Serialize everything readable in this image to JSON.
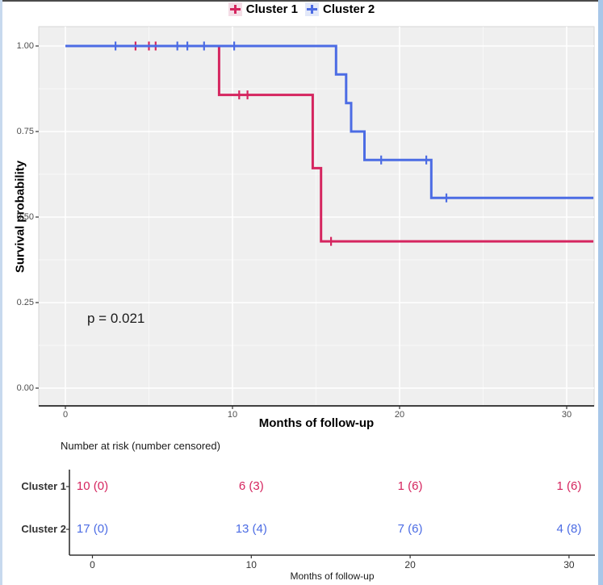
{
  "window": {
    "frame_color": "#a8c7e9",
    "top_line_color": "#4a4a4a"
  },
  "legend": {
    "items": [
      {
        "label": "Cluster 1",
        "color": "#D5255F",
        "key_bg": "#f4dde6"
      },
      {
        "label": "Cluster 2",
        "color": "#4C6CE4",
        "key_bg": "#e2e8f9"
      }
    ]
  },
  "chart_data": {
    "type": "line",
    "subtype": "kaplan_meier_step_curves",
    "title": "",
    "xlabel": "Months of follow-up",
    "ylabel": "Survival probability",
    "xlim": [
      0,
      31.6
    ],
    "ylim": [
      0,
      1
    ],
    "grid": true,
    "legend_position": "top",
    "panel_bg": "#efefef",
    "pvalue_annotation": "p = 0.021",
    "x_ticks": [
      {
        "label": "0",
        "value": 0
      },
      {
        "label": "10",
        "value": 10
      },
      {
        "label": "20",
        "value": 20
      },
      {
        "label": "30",
        "value": 30
      }
    ],
    "y_ticks": [
      {
        "label": "1.00",
        "value": 1.0
      },
      {
        "label": "0.75",
        "value": 0.75
      },
      {
        "label": "0.50",
        "value": 0.5
      },
      {
        "label": "0.25",
        "value": 0.25
      },
      {
        "label": "0.00",
        "value": 0.0
      }
    ],
    "x_minor_ticks": [
      5,
      15,
      25
    ],
    "y_minor_ticks": [
      0.875,
      0.625,
      0.375,
      0.125
    ],
    "series": [
      {
        "name": "Cluster 1",
        "color": "#D5255F",
        "step_points": [
          [
            0,
            1.0
          ],
          [
            9.2,
            0.857
          ],
          [
            14.8,
            0.643
          ],
          [
            15.3,
            0.429
          ]
        ],
        "end_x": 31.6,
        "censor_marks": [
          [
            4.2,
            1.0
          ],
          [
            5.0,
            1.0
          ],
          [
            5.4,
            1.0
          ],
          [
            10.4,
            0.857
          ],
          [
            10.9,
            0.857
          ],
          [
            15.9,
            0.429
          ]
        ]
      },
      {
        "name": "Cluster 2",
        "color": "#4C6CE4",
        "step_points": [
          [
            0,
            1.0
          ],
          [
            16.2,
            0.917
          ],
          [
            16.8,
            0.833
          ],
          [
            17.1,
            0.75
          ],
          [
            17.9,
            0.667
          ],
          [
            21.9,
            0.556
          ]
        ],
        "end_x": 31.6,
        "censor_marks": [
          [
            3.0,
            1.0
          ],
          [
            6.7,
            1.0
          ],
          [
            7.3,
            1.0
          ],
          [
            8.3,
            1.0
          ],
          [
            10.1,
            1.0
          ],
          [
            18.9,
            0.667
          ],
          [
            21.6,
            0.667
          ],
          [
            22.8,
            0.556
          ]
        ]
      }
    ]
  },
  "risk_table": {
    "title": "Number at risk (number censored)",
    "xlabel": "Months of follow-up",
    "rows": [
      {
        "label": "Cluster 1",
        "color": "#D5255F",
        "values": [
          "10 (0)",
          "6 (3)",
          "1 (6)",
          "1 (6)"
        ]
      },
      {
        "label": "Cluster 2",
        "color": "#4C6CE4",
        "values": [
          "17 (0)",
          "13 (4)",
          "7 (6)",
          "4 (8)"
        ]
      }
    ]
  }
}
